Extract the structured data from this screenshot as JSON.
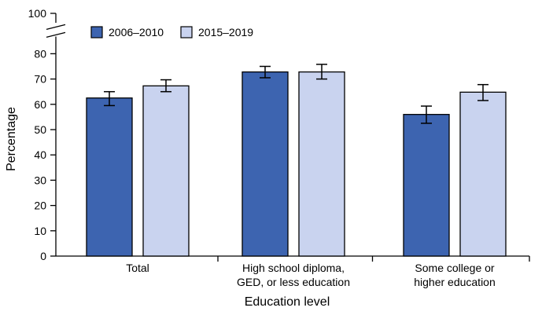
{
  "chart_data": {
    "type": "bar",
    "title": "",
    "xlabel": "Education level",
    "ylabel": "Percentage",
    "ylim": [
      0,
      100
    ],
    "axis_break": {
      "from": 80,
      "to": 100
    },
    "yticks": [
      "0",
      "10",
      "20",
      "30",
      "40",
      "50",
      "60",
      "70",
      "80",
      "100"
    ],
    "categories": [
      [
        "Total"
      ],
      [
        "High school diploma,",
        "GED, or less education"
      ],
      [
        "Some college or",
        "higher education"
      ]
    ],
    "series": [
      {
        "name": "2006–2010",
        "color": "#3d64b0",
        "values": [
          62.5,
          72.8,
          56.0
        ],
        "error_low": [
          59.5,
          70.5,
          52.5
        ],
        "error_high": [
          65.0,
          75.0,
          59.3
        ]
      },
      {
        "name": "2015–2019",
        "color": "#c9d3ef",
        "values": [
          67.3,
          72.8,
          64.8
        ],
        "error_low": [
          65.0,
          70.0,
          61.5
        ],
        "error_high": [
          69.7,
          75.8,
          67.8
        ]
      }
    ],
    "legend_position": "top-left",
    "grid": false
  }
}
